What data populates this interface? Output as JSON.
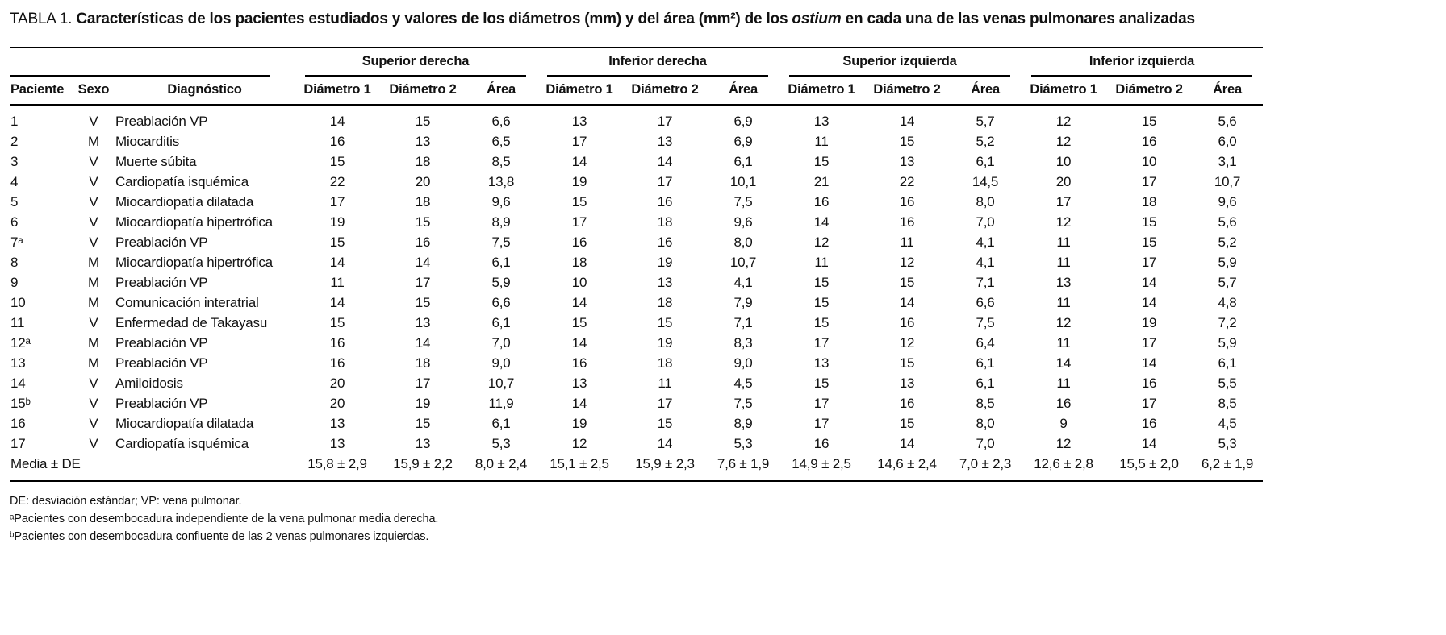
{
  "title": {
    "prefix": "TABLA 1.",
    "bold_before": " Características de los pacientes estudiados y valores de los diámetros (mm) y del área (mm²) de los ",
    "italic": "ostium",
    "bold_after": " en cada una de las venas pulmonares analizadas"
  },
  "table": {
    "left_headers": [
      "Paciente",
      "Sexo",
      "Diagnóstico"
    ],
    "groups": [
      "Superior derecha",
      "Inferior derecha",
      "Superior izquierda",
      "Inferior izquierda"
    ],
    "sub_headers": [
      "Diámetro 1",
      "Diámetro 2",
      "Área"
    ],
    "rows": [
      {
        "paciente": "1",
        "sexo": "V",
        "diagnostico": "Preablación VP",
        "values": [
          "14",
          "15",
          "6,6",
          "13",
          "17",
          "6,9",
          "13",
          "14",
          "5,7",
          "12",
          "15",
          "5,6"
        ]
      },
      {
        "paciente": "2",
        "sexo": "M",
        "diagnostico": "Miocarditis",
        "values": [
          "16",
          "13",
          "6,5",
          "17",
          "13",
          "6,9",
          "11",
          "15",
          "5,2",
          "12",
          "16",
          "6,0"
        ]
      },
      {
        "paciente": "3",
        "sexo": "V",
        "diagnostico": "Muerte súbita",
        "values": [
          "15",
          "18",
          "8,5",
          "14",
          "14",
          "6,1",
          "15",
          "13",
          "6,1",
          "10",
          "10",
          "3,1"
        ]
      },
      {
        "paciente": "4",
        "sexo": "V",
        "diagnostico": "Cardiopatía isquémica",
        "values": [
          "22",
          "20",
          "13,8",
          "19",
          "17",
          "10,1",
          "21",
          "22",
          "14,5",
          "20",
          "17",
          "10,7"
        ]
      },
      {
        "paciente": "5",
        "sexo": "V",
        "diagnostico": "Miocardiopatía dilatada",
        "values": [
          "17",
          "18",
          "9,6",
          "15",
          "16",
          "7,5",
          "16",
          "16",
          "8,0",
          "17",
          "18",
          "9,6"
        ]
      },
      {
        "paciente": "6",
        "sexo": "V",
        "diagnostico": "Miocardiopatía hipertrófica",
        "values": [
          "19",
          "15",
          "8,9",
          "17",
          "18",
          "9,6",
          "14",
          "16",
          "7,0",
          "12",
          "15",
          "5,6"
        ]
      },
      {
        "paciente": "7ᵃ",
        "sexo": "V",
        "diagnostico": "Preablación VP",
        "values": [
          "15",
          "16",
          "7,5",
          "16",
          "16",
          "8,0",
          "12",
          "11",
          "4,1",
          "11",
          "15",
          "5,2"
        ]
      },
      {
        "paciente": "8",
        "sexo": "M",
        "diagnostico": "Miocardiopatía hipertrófica",
        "values": [
          "14",
          "14",
          "6,1",
          "18",
          "19",
          "10,7",
          "11",
          "12",
          "4,1",
          "11",
          "17",
          "5,9"
        ]
      },
      {
        "paciente": "9",
        "sexo": "M",
        "diagnostico": "Preablación VP",
        "values": [
          "11",
          "17",
          "5,9",
          "10",
          "13",
          "4,1",
          "15",
          "15",
          "7,1",
          "13",
          "14",
          "5,7"
        ]
      },
      {
        "paciente": "10",
        "sexo": "M",
        "diagnostico": "Comunicación interatrial",
        "values": [
          "14",
          "15",
          "6,6",
          "14",
          "18",
          "7,9",
          "15",
          "14",
          "6,6",
          "11",
          "14",
          "4,8"
        ]
      },
      {
        "paciente": "11",
        "sexo": "V",
        "diagnostico": "Enfermedad de Takayasu",
        "values": [
          "15",
          "13",
          "6,1",
          "15",
          "15",
          "7,1",
          "15",
          "16",
          "7,5",
          "12",
          "19",
          "7,2"
        ]
      },
      {
        "paciente": "12ᵃ",
        "sexo": "M",
        "diagnostico": "Preablación VP",
        "values": [
          "16",
          "14",
          "7,0",
          "14",
          "19",
          "8,3",
          "17",
          "12",
          "6,4",
          "11",
          "17",
          "5,9"
        ]
      },
      {
        "paciente": "13",
        "sexo": "M",
        "diagnostico": "Preablación VP",
        "values": [
          "16",
          "18",
          "9,0",
          "16",
          "18",
          "9,0",
          "13",
          "15",
          "6,1",
          "14",
          "14",
          "6,1"
        ]
      },
      {
        "paciente": "14",
        "sexo": "V",
        "diagnostico": "Amiloidosis",
        "values": [
          "20",
          "17",
          "10,7",
          "13",
          "11",
          "4,5",
          "15",
          "13",
          "6,1",
          "11",
          "16",
          "5,5"
        ]
      },
      {
        "paciente": "15ᵇ",
        "sexo": "V",
        "diagnostico": "Preablación VP",
        "values": [
          "20",
          "19",
          "11,9",
          "14",
          "17",
          "7,5",
          "17",
          "16",
          "8,5",
          "16",
          "17",
          "8,5"
        ]
      },
      {
        "paciente": "16",
        "sexo": "V",
        "diagnostico": "Miocardiopatía dilatada",
        "values": [
          "13",
          "15",
          "6,1",
          "19",
          "15",
          "8,9",
          "17",
          "15",
          "8,0",
          "9",
          "16",
          "4,5"
        ]
      },
      {
        "paciente": "17",
        "sexo": "V",
        "diagnostico": "Cardiopatía isquémica",
        "values": [
          "13",
          "13",
          "5,3",
          "12",
          "14",
          "5,3",
          "16",
          "14",
          "7,0",
          "12",
          "14",
          "5,3"
        ]
      }
    ],
    "summary": {
      "label": "Media ± DE",
      "values": [
        "15,8 ± 2,9",
        "15,9 ± 2,2",
        "8,0 ± 2,4",
        "15,1 ± 2,5",
        "15,9 ± 2,3",
        "7,6 ± 1,9",
        "14,9 ± 2,5",
        "14,6 ± 2,4",
        "7,0 ± 2,3",
        "12,6 ± 2,8",
        "15,5 ± 2,0",
        "6,2 ± 1,9"
      ]
    }
  },
  "footnotes": [
    "DE: desviación estándar; VP: vena pulmonar.",
    "ᵃPacientes con desembocadura independiente de la vena pulmonar media derecha.",
    "ᵇPacientes con desembocadura confluente de las 2 venas pulmonares izquierdas."
  ]
}
